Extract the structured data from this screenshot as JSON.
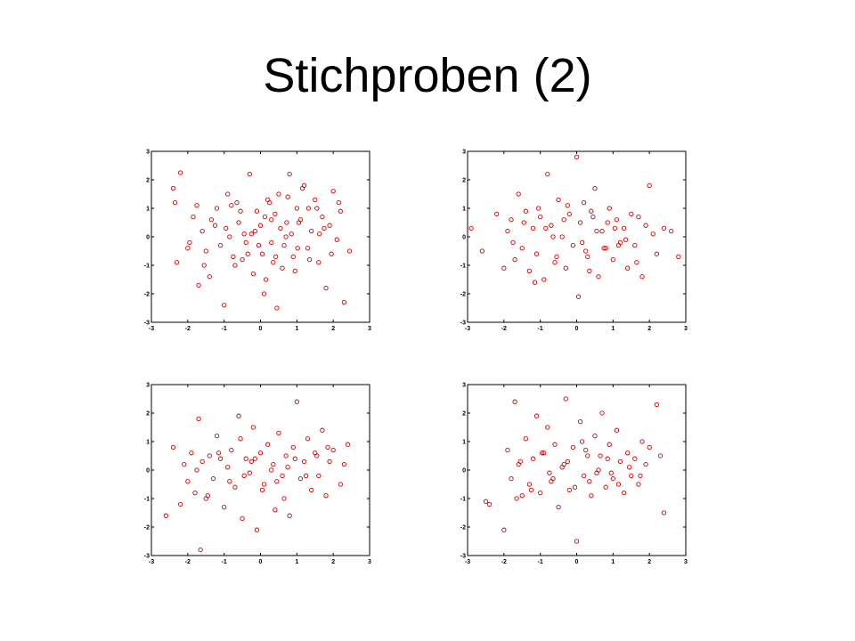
{
  "slide": {
    "title": "Stichproben (2)"
  },
  "colors": {
    "marker": "#cc0000",
    "axis": "#000000"
  },
  "chart_data": [
    {
      "type": "scatter",
      "title": "",
      "xlabel": "",
      "ylabel": "",
      "xlim": [
        -3,
        3
      ],
      "ylim": [
        -3,
        3
      ],
      "xticks": [
        "-3",
        "-2",
        "-1",
        "0",
        "1",
        "2",
        "3"
      ],
      "yticks": [
        "-3",
        "-2",
        "-1",
        "0",
        "1",
        "2",
        "3"
      ],
      "grid": false,
      "marker": "circle",
      "x": [
        -2.4,
        -2.35,
        -2.3,
        -2.2,
        -1.75,
        -1.7,
        -1.6,
        -1.5,
        -1.4,
        -1.2,
        -1.0,
        -0.95,
        -0.8,
        -0.7,
        -0.6,
        -0.5,
        -0.3,
        -0.25,
        -0.2,
        -0.1,
        0.0,
        0.05,
        0.1,
        0.2,
        0.3,
        0.4,
        0.45,
        0.5,
        0.6,
        0.7,
        0.8,
        0.9,
        1.0,
        1.1,
        1.2,
        1.3,
        1.4,
        1.5,
        1.6,
        1.7,
        1.8,
        1.9,
        2.0,
        2.1,
        2.2,
        2.3,
        2.45,
        -2.0,
        -1.85,
        -1.55,
        -1.35,
        -1.1,
        -0.9,
        -0.75,
        -0.55,
        -0.4,
        -0.15,
        0.15,
        0.25,
        0.35,
        0.55,
        0.65,
        0.75,
        0.85,
        0.95,
        1.05,
        1.15,
        1.35,
        1.55,
        1.75,
        1.95,
        2.15,
        -1.95,
        -1.25,
        -0.65,
        -0.35,
        0.12,
        0.42,
        0.72,
        1.02,
        1.32,
        1.62,
        -0.05,
        -0.45,
        -0.85,
        0.3
      ],
      "y": [
        1.7,
        1.2,
        -0.9,
        2.25,
        1.1,
        -1.7,
        0.2,
        -0.5,
        -1.4,
        1.0,
        -2.4,
        0.3,
        1.1,
        -1.0,
        0.5,
        -0.8,
        2.2,
        0.1,
        -1.3,
        0.9,
        0.4,
        -0.6,
        -2.0,
        1.3,
        -0.2,
        0.8,
        -2.5,
        1.5,
        -1.1,
        0.0,
        2.2,
        -0.7,
        1.0,
        0.6,
        1.8,
        -0.4,
        0.2,
        1.3,
        -0.9,
        0.7,
        -1.8,
        0.4,
        1.6,
        -0.1,
        0.9,
        -2.3,
        -0.5,
        -0.4,
        0.7,
        -1.0,
        0.6,
        -0.3,
        1.5,
        -0.7,
        0.9,
        -0.2,
        0.2,
        -1.5,
        1.2,
        -0.9,
        0.3,
        -0.3,
        1.4,
        0.1,
        -1.2,
        0.5,
        1.7,
        -0.8,
        1.0,
        0.3,
        -0.6,
        1.2,
        -0.2,
        0.4,
        1.2,
        -0.6,
        0.7,
        -0.7,
        0.5,
        -0.4,
        1.0,
        0.1,
        -0.3,
        0.1,
        0.0,
        0.6
      ]
    },
    {
      "type": "scatter",
      "title": "",
      "xlabel": "",
      "ylabel": "",
      "xlim": [
        -3,
        3
      ],
      "ylim": [
        -3,
        3
      ],
      "xticks": [
        "-3",
        "-2",
        "-1",
        "0",
        "1",
        "2",
        "3"
      ],
      "yticks": [
        "-3",
        "-2",
        "-1",
        "0",
        "1",
        "2",
        "3"
      ],
      "grid": false,
      "marker": "circle",
      "x": [
        -2.9,
        -2.6,
        -2.2,
        -2.0,
        -1.9,
        -1.8,
        -1.7,
        -1.6,
        -1.5,
        -1.4,
        -1.3,
        -1.2,
        -1.1,
        -1.0,
        -0.9,
        -0.8,
        -0.7,
        -0.6,
        -0.5,
        -0.4,
        -0.3,
        -0.2,
        -0.1,
        0.0,
        0.05,
        0.1,
        0.2,
        0.3,
        0.4,
        0.5,
        0.6,
        0.7,
        0.8,
        0.9,
        1.0,
        1.1,
        1.2,
        1.3,
        1.4,
        1.5,
        1.6,
        1.7,
        1.8,
        1.9,
        2.0,
        2.1,
        2.2,
        2.4,
        2.6,
        2.8,
        -1.75,
        -1.45,
        -1.15,
        -0.85,
        -0.55,
        -0.25,
        0.15,
        0.45,
        0.75,
        1.05,
        1.35,
        1.65,
        -0.65,
        -0.35,
        0.25,
        0.55,
        0.85,
        1.15,
        -1.05,
        0.35
      ],
      "y": [
        0.3,
        -0.5,
        0.8,
        -1.1,
        0.2,
        0.6,
        -0.8,
        1.5,
        -0.4,
        0.9,
        -1.2,
        0.3,
        -0.6,
        0.7,
        -1.5,
        2.2,
        0.4,
        -0.9,
        1.3,
        0.0,
        -1.1,
        0.8,
        -0.3,
        2.8,
        -2.1,
        0.5,
        1.2,
        -0.7,
        0.9,
        1.7,
        -1.4,
        0.2,
        -0.4,
        1.0,
        -0.8,
        0.6,
        -0.2,
        0.3,
        -1.1,
        0.8,
        -0.3,
        0.7,
        -1.4,
        0.4,
        1.8,
        0.1,
        -0.6,
        0.3,
        0.2,
        -0.7,
        -0.2,
        0.5,
        -1.6,
        0.3,
        -0.7,
        1.1,
        -0.2,
        0.7,
        -0.4,
        0.3,
        -0.1,
        -0.9,
        0.0,
        0.6,
        -0.5,
        0.2,
        0.5,
        -0.3,
        1.0,
        -1.2
      ]
    },
    {
      "type": "scatter",
      "title": "",
      "xlabel": "",
      "ylabel": "",
      "xlim": [
        -3,
        3
      ],
      "ylim": [
        -3,
        3
      ],
      "xticks": [
        "-3",
        "-2",
        "-1",
        "0",
        "1",
        "2",
        "3"
      ],
      "yticks": [
        "-3",
        "-2",
        "-1",
        "0",
        "1",
        "2",
        "3"
      ],
      "grid": false,
      "marker": "circle",
      "x": [
        -2.6,
        -2.4,
        -2.2,
        -2.1,
        -2.0,
        -1.9,
        -1.8,
        -1.7,
        -1.6,
        -1.5,
        -1.4,
        -1.3,
        -1.2,
        -1.1,
        -1.0,
        -0.9,
        -0.8,
        -0.7,
        -0.6,
        -0.5,
        -0.4,
        -0.3,
        -0.2,
        -0.1,
        0.0,
        0.1,
        0.2,
        0.3,
        0.4,
        0.5,
        0.6,
        0.7,
        0.8,
        0.9,
        1.0,
        1.1,
        1.2,
        1.3,
        1.4,
        1.5,
        1.6,
        1.7,
        1.8,
        1.9,
        2.0,
        2.2,
        2.3,
        2.4,
        -1.75,
        -1.45,
        -1.15,
        -0.85,
        -0.55,
        -0.25,
        0.05,
        0.35,
        0.65,
        0.95,
        1.25,
        1.55,
        1.85,
        -0.45,
        -0.15,
        0.45,
        0.75,
        -1.65
      ],
      "y": [
        -1.6,
        0.8,
        -1.2,
        0.2,
        -0.4,
        0.6,
        -0.8,
        1.8,
        0.3,
        -1.0,
        0.5,
        -0.3,
        1.2,
        0.4,
        -1.3,
        0.1,
        0.7,
        -0.6,
        1.9,
        -1.7,
        0.4,
        -0.1,
        1.5,
        -2.1,
        0.6,
        -0.5,
        0.9,
        0.0,
        -1.4,
        1.3,
        -0.2,
        0.5,
        -1.6,
        0.8,
        2.4,
        -0.3,
        0.3,
        1.1,
        -0.7,
        0.6,
        -0.2,
        1.4,
        -0.9,
        0.3,
        0.7,
        -0.5,
        0.2,
        0.9,
        0.0,
        -0.9,
        0.6,
        -0.4,
        1.1,
        0.3,
        -0.7,
        0.2,
        -1.0,
        0.4,
        -0.2,
        0.5,
        0.8,
        -0.2,
        0.4,
        -0.4,
        0.1,
        -2.8
      ]
    },
    {
      "type": "scatter",
      "title": "",
      "xlabel": "",
      "ylabel": "",
      "xlim": [
        -3,
        3
      ],
      "ylim": [
        -3,
        3
      ],
      "xticks": [
        "-3",
        "-2",
        "-1",
        "0",
        "1",
        "2",
        "3"
      ],
      "yticks": [
        "-3",
        "-2",
        "-1",
        "0",
        "1",
        "2",
        "3"
      ],
      "grid": false,
      "marker": "circle",
      "x": [
        -2.5,
        -2.4,
        -2.0,
        -1.9,
        -1.8,
        -1.7,
        -1.6,
        -1.5,
        -1.4,
        -1.3,
        -1.2,
        -1.1,
        -1.0,
        -0.9,
        -0.8,
        -0.7,
        -0.6,
        -0.5,
        -0.4,
        -0.3,
        -0.2,
        -0.1,
        0.0,
        0.1,
        0.2,
        0.3,
        0.4,
        0.5,
        0.6,
        0.7,
        0.8,
        0.9,
        1.0,
        1.1,
        1.2,
        1.3,
        1.4,
        1.5,
        1.6,
        1.7,
        1.8,
        1.9,
        2.0,
        2.2,
        2.3,
        2.4,
        -1.55,
        -1.25,
        -0.95,
        -0.65,
        -0.35,
        -0.05,
        0.25,
        0.55,
        0.85,
        1.15,
        1.45,
        1.75,
        -0.75,
        -0.25,
        0.35,
        0.65,
        0.95,
        -1.65,
        0.15
      ],
      "y": [
        -1.1,
        -1.2,
        -2.1,
        0.7,
        -0.3,
        2.4,
        0.2,
        -0.9,
        1.1,
        -0.5,
        0.4,
        1.9,
        -0.8,
        0.6,
        1.5,
        -0.4,
        0.9,
        -1.3,
        0.1,
        2.5,
        -0.7,
        0.8,
        -2.5,
        1.7,
        -0.2,
        0.5,
        -0.9,
        1.2,
        0.0,
        2.0,
        -0.6,
        0.9,
        -0.3,
        1.4,
        0.3,
        -0.8,
        0.6,
        -0.2,
        0.4,
        -0.5,
        1.0,
        0.2,
        0.8,
        2.3,
        0.5,
        -1.5,
        0.3,
        -0.7,
        0.6,
        -0.3,
        0.2,
        -0.6,
        0.7,
        -0.1,
        0.4,
        -0.5,
        0.1,
        -0.2,
        -0.1,
        0.3,
        -0.4,
        0.5,
        -0.1,
        -1.0,
        1.0
      ]
    }
  ]
}
